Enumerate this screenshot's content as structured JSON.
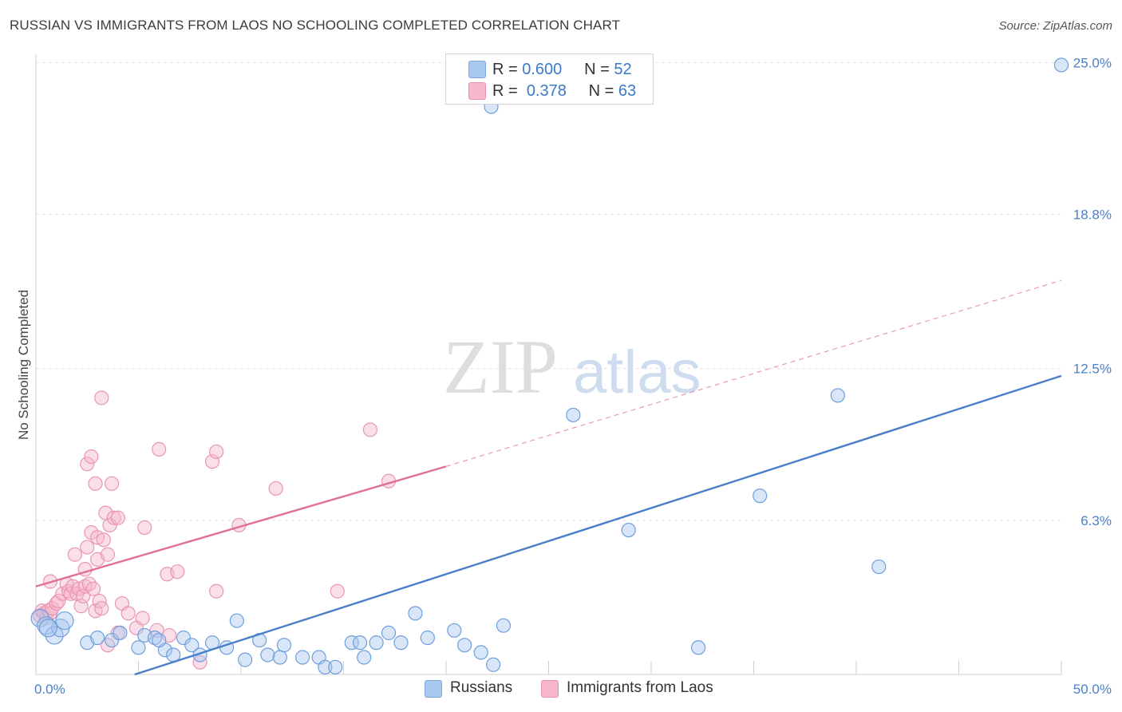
{
  "header": {
    "title": "RUSSIAN VS IMMIGRANTS FROM LAOS NO SCHOOLING COMPLETED CORRELATION CHART",
    "source": "Source: ZipAtlas.com"
  },
  "watermark": {
    "zip": "ZIP",
    "atlas": "atlas"
  },
  "legend": {
    "rows": [
      {
        "r_label": "R =",
        "r_value": "0.600",
        "n_label": "N =",
        "n_value": "52",
        "color": "#a9c8f0"
      },
      {
        "r_label": "R =",
        "r_value": "0.378",
        "n_label": "N =",
        "n_value": "63",
        "color": "#f7b8cc"
      }
    ]
  },
  "bottom_legend": {
    "items": [
      {
        "label": "Russians",
        "color": "#a9c8f0"
      },
      {
        "label": "Immigrants from Laos",
        "color": "#f7b8cc"
      }
    ]
  },
  "chart_data": {
    "type": "scatter",
    "title": "RUSSIAN VS IMMIGRANTS FROM LAOS NO SCHOOLING COMPLETED CORRELATION CHART",
    "xlabel": "",
    "ylabel": "No Schooling Completed",
    "xlim": [
      0,
      50
    ],
    "ylim": [
      0,
      25.6
    ],
    "x_tick_labels": [
      "0.0%",
      "50.0%"
    ],
    "y_ticks": [
      6.3,
      12.5,
      18.8,
      25.0
    ],
    "y_tick_labels": [
      "6.3%",
      "12.5%",
      "18.8%",
      "25.0%"
    ],
    "grid": true,
    "series": [
      {
        "name": "Russians",
        "color": "#4a7fc8",
        "fill": "#a9c8f0",
        "R": 0.6,
        "N": 52,
        "trend": {
          "x0": 0,
          "y0": -1.3,
          "x1": 50,
          "y1": 12.2,
          "dashed_extension": false
        },
        "points": [
          [
            0.2,
            2.3
          ],
          [
            0.5,
            2.0
          ],
          [
            0.9,
            1.6
          ],
          [
            1.2,
            1.9
          ],
          [
            1.4,
            2.2
          ],
          [
            2.5,
            1.3
          ],
          [
            3.0,
            1.5
          ],
          [
            3.7,
            1.4
          ],
          [
            4.1,
            1.7
          ],
          [
            5.0,
            1.1
          ],
          [
            5.3,
            1.6
          ],
          [
            5.8,
            1.5
          ],
          [
            6.3,
            1.0
          ],
          [
            6.7,
            0.8
          ],
          [
            7.2,
            1.5
          ],
          [
            7.6,
            1.2
          ],
          [
            8.0,
            0.8
          ],
          [
            8.6,
            1.3
          ],
          [
            9.3,
            1.1
          ],
          [
            9.8,
            2.2
          ],
          [
            10.2,
            0.6
          ],
          [
            10.9,
            1.4
          ],
          [
            11.3,
            0.8
          ],
          [
            11.9,
            0.7
          ],
          [
            12.1,
            1.2
          ],
          [
            13.0,
            0.7
          ],
          [
            13.8,
            0.7
          ],
          [
            14.1,
            0.3
          ],
          [
            14.6,
            0.3
          ],
          [
            15.4,
            1.3
          ],
          [
            15.8,
            1.3
          ],
          [
            16.0,
            0.7
          ],
          [
            16.6,
            1.3
          ],
          [
            17.2,
            1.7
          ],
          [
            17.8,
            1.3
          ],
          [
            18.5,
            2.5
          ],
          [
            19.1,
            1.5
          ],
          [
            20.4,
            1.8
          ],
          [
            20.9,
            1.2
          ],
          [
            21.7,
            0.9
          ],
          [
            22.3,
            0.4
          ],
          [
            22.8,
            2.0
          ],
          [
            22.2,
            23.2
          ],
          [
            26.2,
            10.6
          ],
          [
            28.9,
            5.9
          ],
          [
            32.3,
            1.1
          ],
          [
            35.3,
            7.3
          ],
          [
            39.1,
            11.4
          ],
          [
            41.1,
            4.4
          ],
          [
            50.0,
            24.9
          ],
          [
            0.6,
            1.9
          ],
          [
            6.0,
            1.4
          ]
        ]
      },
      {
        "name": "Immigrants from Laos",
        "color": "#e06f95",
        "fill": "#f7b8cc",
        "R": 0.378,
        "N": 63,
        "trend": {
          "x0": 0,
          "y0": 3.6,
          "x1": 20,
          "y1": 8.5,
          "dashed_extension": true,
          "dash_x1": 50,
          "dash_y1": 16.1
        },
        "points": [
          [
            0.2,
            2.4
          ],
          [
            0.3,
            2.6
          ],
          [
            0.4,
            2.5
          ],
          [
            0.5,
            2.3
          ],
          [
            0.6,
            2.6
          ],
          [
            0.7,
            2.5
          ],
          [
            0.8,
            2.7
          ],
          [
            1.0,
            2.9
          ],
          [
            1.1,
            3.0
          ],
          [
            1.3,
            3.3
          ],
          [
            1.5,
            3.7
          ],
          [
            1.6,
            3.4
          ],
          [
            1.7,
            3.3
          ],
          [
            1.8,
            3.6
          ],
          [
            2.0,
            3.3
          ],
          [
            2.1,
            3.5
          ],
          [
            2.2,
            2.8
          ],
          [
            2.3,
            3.2
          ],
          [
            2.4,
            3.6
          ],
          [
            2.6,
            3.7
          ],
          [
            2.8,
            3.5
          ],
          [
            2.9,
            2.6
          ],
          [
            3.1,
            3.0
          ],
          [
            3.2,
            2.7
          ],
          [
            0.7,
            3.8
          ],
          [
            1.9,
            4.9
          ],
          [
            2.5,
            5.2
          ],
          [
            2.7,
            5.8
          ],
          [
            3.0,
            5.6
          ],
          [
            3.3,
            5.5
          ],
          [
            2.4,
            4.3
          ],
          [
            3.0,
            4.7
          ],
          [
            3.5,
            4.9
          ],
          [
            3.4,
            6.6
          ],
          [
            3.6,
            6.1
          ],
          [
            3.8,
            6.4
          ],
          [
            4.0,
            6.4
          ],
          [
            5.3,
            6.0
          ],
          [
            2.5,
            8.6
          ],
          [
            2.7,
            8.9
          ],
          [
            2.9,
            7.8
          ],
          [
            3.7,
            7.8
          ],
          [
            3.2,
            11.3
          ],
          [
            6.0,
            9.2
          ],
          [
            8.6,
            8.7
          ],
          [
            8.8,
            9.1
          ],
          [
            11.7,
            7.6
          ],
          [
            16.3,
            10.0
          ],
          [
            17.2,
            7.9
          ],
          [
            9.9,
            6.1
          ],
          [
            6.4,
            4.1
          ],
          [
            6.9,
            4.2
          ],
          [
            8.8,
            3.4
          ],
          [
            14.7,
            3.4
          ],
          [
            4.2,
            2.9
          ],
          [
            4.5,
            2.5
          ],
          [
            4.9,
            1.9
          ],
          [
            5.2,
            2.3
          ],
          [
            5.9,
            1.8
          ],
          [
            6.5,
            1.6
          ],
          [
            8.0,
            0.5
          ],
          [
            4.0,
            1.7
          ],
          [
            3.5,
            1.2
          ]
        ]
      }
    ]
  }
}
